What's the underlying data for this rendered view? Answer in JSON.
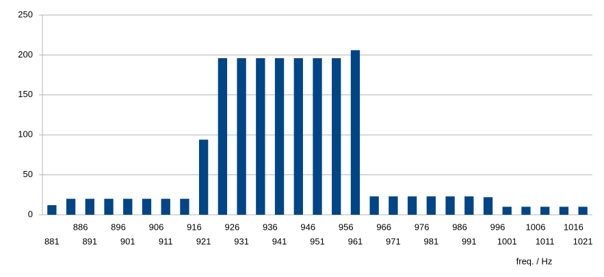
{
  "chart_data": {
    "type": "bar",
    "x_label": "freq. / Hz",
    "categories": [
      "881",
      "886",
      "891",
      "896",
      "901",
      "906",
      "911",
      "916",
      "921",
      "926",
      "931",
      "936",
      "941",
      "946",
      "951",
      "956",
      "961",
      "966",
      "971",
      "976",
      "981",
      "986",
      "991",
      "996",
      "1001",
      "1006",
      "1011",
      "1016",
      "1021"
    ],
    "values": [
      12,
      20,
      20,
      20,
      20,
      20,
      20,
      20,
      94,
      196,
      196,
      196,
      196,
      196,
      196,
      196,
      206,
      23,
      23,
      23,
      23,
      23,
      23,
      22,
      10,
      10,
      10,
      10,
      10
    ],
    "color": "#004586",
    "ylim": [
      0,
      250
    ],
    "yticks": [
      0,
      50,
      100,
      150,
      200,
      250
    ],
    "grid": true
  }
}
